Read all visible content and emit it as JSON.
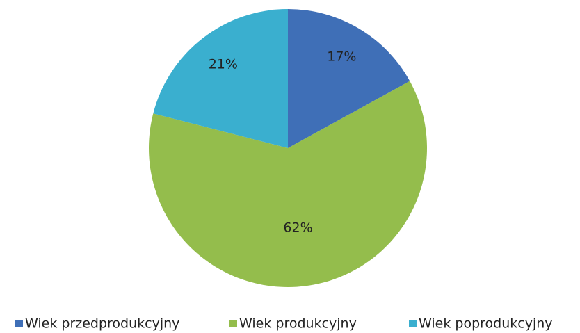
{
  "chart_data": {
    "type": "pie",
    "categories": [
      "Wiek przedprodukcyjny",
      "Wiek produkcyjny",
      "Wiek poprodukcyjny"
    ],
    "values": [
      17,
      62,
      21
    ],
    "value_labels": [
      "17%",
      "62%",
      "21%"
    ],
    "colors": [
      "#3f6fb7",
      "#94bd4c",
      "#3aafcf"
    ],
    "legend": "bottom"
  }
}
